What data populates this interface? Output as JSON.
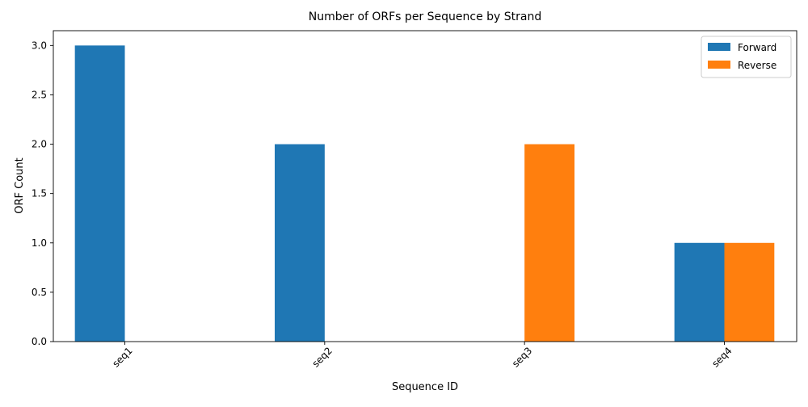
{
  "chart_data": {
    "type": "bar",
    "title": "Number of ORFs per Sequence by Strand",
    "xlabel": "Sequence ID",
    "ylabel": "ORF Count",
    "categories": [
      "seq1",
      "seq2",
      "seq3",
      "seq4"
    ],
    "series": [
      {
        "name": "Forward",
        "color": "#1f77b4",
        "values": [
          3,
          2,
          0,
          1
        ]
      },
      {
        "name": "Reverse",
        "color": "#ff7f0e",
        "values": [
          0,
          0,
          2,
          1
        ]
      }
    ],
    "ylim": [
      0,
      3.15
    ],
    "yticks": [
      "0.0",
      "0.5",
      "1.0",
      "1.5",
      "2.0",
      "2.5",
      "3.0"
    ],
    "legend_position": "top-right",
    "grid": false
  }
}
